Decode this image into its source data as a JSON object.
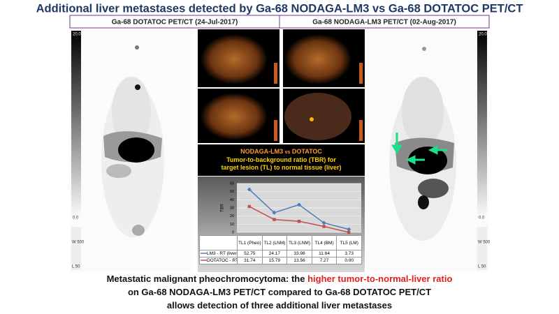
{
  "title": "Additional liver metastases detected by Ga-68 NODAGA-LM3 vs Ga-68 DOTATOC PET/CT",
  "panels": [
    {
      "header": "Ga-68 DOTATOC PET/CT (24-Jul-2017)",
      "scale_max": "20.0",
      "scale_min": "0.0",
      "window": "W 500",
      "level": "L 50"
    },
    {
      "header": "Ga-68 NODAGA-LM3 PET/CT (02-Aug-2017)",
      "scale_max": "20.0",
      "scale_min": "0.0",
      "window": "W 500",
      "level": "L 50"
    }
  ],
  "comparison_box": {
    "heading_left": "NODAGA-LM3",
    "heading_mid": "vs",
    "heading_right": "DOTATOC",
    "lines": [
      "Tumor-to-background ratio (TBR) for",
      "target lesion (TL) to normal tissue (liver)"
    ]
  },
  "chart_data": {
    "type": "line",
    "ylabel": "TBR",
    "categories": [
      "TL1 (Pheo)",
      "TL2 (LNM)",
      "TL3 (LNM)",
      "TL4 (BM)",
      "TL5 (LM)"
    ],
    "series": [
      {
        "name": "LM3 - RT (liver)",
        "color": "#4a7ebb",
        "values": [
          52.75,
          24.17,
          33.98,
          11.64,
          3.73
        ]
      },
      {
        "name": "DOTATOC - RT (liver)",
        "color": "#c0504d",
        "values": [
          31.74,
          15.79,
          13.56,
          7.27,
          0
        ],
        "value_labels": [
          "31.74",
          "15.79",
          "13.56",
          "7.27",
          "0.00"
        ]
      }
    ],
    "ylim": [
      0,
      60
    ],
    "yticks": [
      0,
      10,
      20,
      30,
      40,
      50,
      60
    ],
    "grid": true
  },
  "caption": {
    "line1": "Metastatic malignant pheochromocytoma: the ",
    "highlight": "higher tumor-to-normal-liver ratio",
    "line2": "on Ga-68 NODAGA-LM3 PET/CT compared to Ga-68 DOTATOC PET/CT",
    "line3": "allows detection of three additional liver metastases"
  }
}
